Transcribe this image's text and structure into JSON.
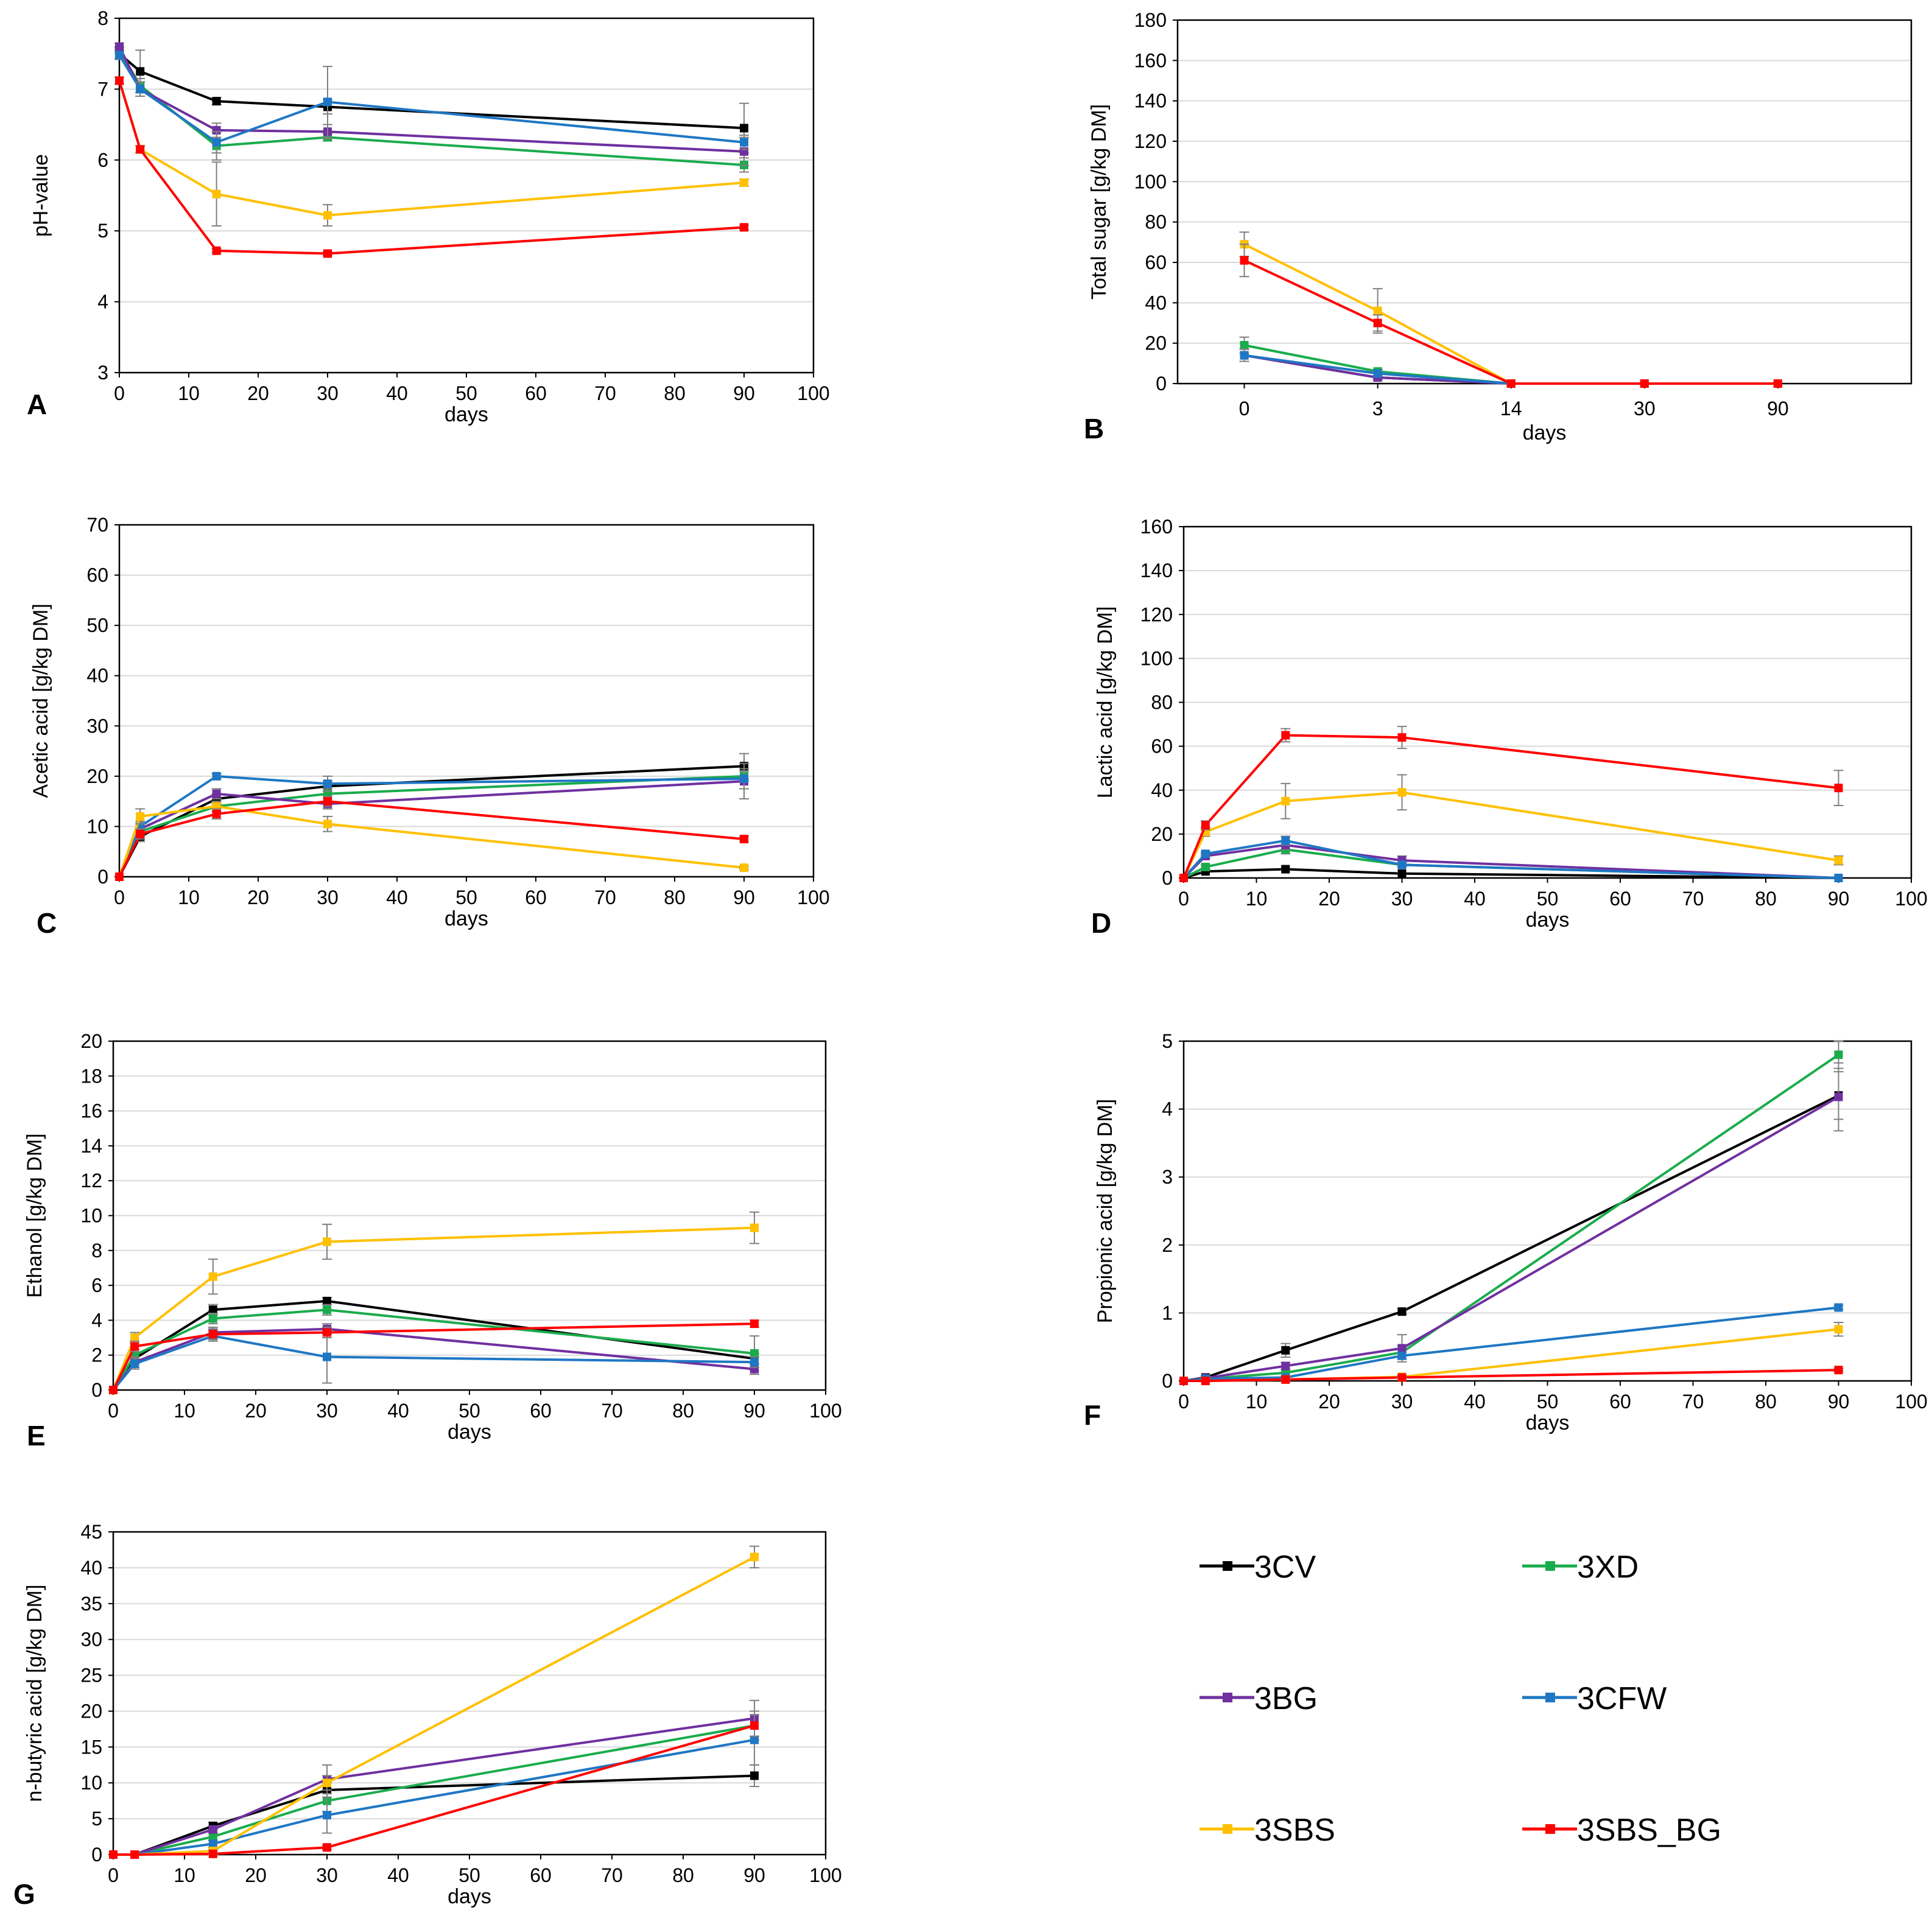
{
  "series_styles": [
    {
      "name": "3CV",
      "color": "#000000"
    },
    {
      "name": "3XD",
      "color": "#1aac4c"
    },
    {
      "name": "3BG",
      "color": "#7030a0"
    },
    {
      "name": "3CFW",
      "color": "#1f77c4"
    },
    {
      "name": "3SBS",
      "color": "#ffc000"
    },
    {
      "name": "3SBS_BG",
      "color": "#ff0000"
    }
  ],
  "chart_data": [
    {
      "panel": "A",
      "type": "line",
      "title": "",
      "xlabel": "days",
      "ylabel": "pH-value",
      "xlim": [
        0,
        100
      ],
      "ylim": [
        3,
        8
      ],
      "xticks": [
        0,
        10,
        20,
        30,
        40,
        50,
        60,
        70,
        80,
        90,
        100
      ],
      "yticks": [
        3,
        4,
        5,
        6,
        7,
        8
      ],
      "grid": true,
      "x": [
        0,
        3,
        14,
        30,
        90
      ],
      "series": [
        {
          "name": "3CV",
          "values": [
            7.5,
            7.25,
            6.83,
            6.75,
            6.45
          ],
          "errors": [
            0.08,
            0.3,
            0.05,
            0.1,
            0.35
          ]
        },
        {
          "name": "3XD",
          "values": [
            7.55,
            7.05,
            6.2,
            6.32,
            5.93
          ],
          "errors": [
            0.05,
            0.1,
            0.2,
            0.05,
            0.1
          ]
        },
        {
          "name": "3BG",
          "values": [
            7.6,
            7.0,
            6.42,
            6.4,
            6.12
          ],
          "errors": [
            0.05,
            0.1,
            0.1,
            0.1,
            0.2
          ]
        },
        {
          "name": "3CFW",
          "values": [
            7.48,
            7.0,
            6.25,
            6.82,
            6.25
          ],
          "errors": [
            0.05,
            0.1,
            0.15,
            0.5,
            0.1
          ]
        },
        {
          "name": "3SBS",
          "values": [
            7.12,
            6.15,
            5.52,
            5.22,
            5.68
          ],
          "errors": [
            0.05,
            0.05,
            0.45,
            0.15,
            0.05
          ]
        },
        {
          "name": "3SBS_BG",
          "values": [
            7.12,
            6.15,
            4.72,
            4.68,
            5.05
          ],
          "errors": [
            0.05,
            0.05,
            0.03,
            0.03,
            0.03
          ]
        }
      ]
    },
    {
      "panel": "B",
      "type": "line",
      "title": "",
      "xlabel": "days",
      "ylabel": "Total sugar  [g/kg DM]",
      "x_categorical": true,
      "categories": [
        "0",
        "3",
        "14",
        "30",
        "90"
      ],
      "ylim": [
        0,
        180
      ],
      "yticks": [
        0,
        20,
        40,
        60,
        80,
        100,
        120,
        140,
        160,
        180
      ],
      "grid": true,
      "series": [
        {
          "name": "3CV",
          "values": [
            14,
            3,
            0,
            0,
            0
          ],
          "errors": [
            3,
            1,
            0,
            0,
            0
          ]
        },
        {
          "name": "3XD",
          "values": [
            19,
            6,
            0,
            0,
            0
          ],
          "errors": [
            4,
            1,
            0,
            0,
            0
          ]
        },
        {
          "name": "3BG",
          "values": [
            14,
            3,
            0,
            0,
            0
          ],
          "errors": [
            3,
            1,
            0,
            0,
            0
          ]
        },
        {
          "name": "3CFW",
          "values": [
            14,
            5,
            0,
            0,
            0
          ],
          "errors": [
            3,
            1,
            0,
            0,
            0
          ]
        },
        {
          "name": "3SBS",
          "values": [
            69,
            36,
            0,
            0,
            0
          ],
          "errors": [
            6,
            11,
            0,
            0,
            0
          ]
        },
        {
          "name": "3SBS_BG",
          "values": [
            61,
            30,
            0,
            0,
            0
          ],
          "errors": [
            8,
            4,
            0,
            0,
            0
          ]
        }
      ]
    },
    {
      "panel": "C",
      "type": "line",
      "title": "",
      "xlabel": "days",
      "ylabel": "Acetic acid [g/kg DM]",
      "xlim": [
        0,
        100
      ],
      "ylim": [
        0,
        70
      ],
      "xticks": [
        0,
        10,
        20,
        30,
        40,
        50,
        60,
        70,
        80,
        90,
        100
      ],
      "yticks": [
        0,
        10,
        20,
        30,
        40,
        50,
        60,
        70
      ],
      "grid": true,
      "x": [
        0,
        3,
        14,
        30,
        90
      ],
      "series": [
        {
          "name": "3CV",
          "values": [
            0,
            8,
            15.5,
            18,
            22
          ],
          "errors": [
            0,
            1,
            1,
            1,
            2.5
          ]
        },
        {
          "name": "3XD",
          "values": [
            0,
            9,
            14,
            16.5,
            20
          ],
          "errors": [
            0,
            1,
            1,
            1,
            1
          ]
        },
        {
          "name": "3BG",
          "values": [
            0,
            9.5,
            16.5,
            14.5,
            19
          ],
          "errors": [
            0,
            1,
            1,
            1,
            3.5
          ]
        },
        {
          "name": "3CFW",
          "values": [
            0,
            10,
            20,
            18.5,
            19.5
          ],
          "errors": [
            0,
            1,
            0.5,
            1.5,
            2
          ]
        },
        {
          "name": "3SBS",
          "values": [
            0,
            12,
            14,
            10.5,
            1.8
          ],
          "errors": [
            0,
            1.5,
            1,
            1.5,
            0.3
          ]
        },
        {
          "name": "3SBS_BG",
          "values": [
            0,
            8.5,
            12.5,
            15,
            7.5
          ],
          "errors": [
            0,
            1,
            1,
            1,
            0.5
          ]
        }
      ]
    },
    {
      "panel": "D",
      "type": "line",
      "title": "",
      "xlabel": "days",
      "ylabel": "Lactic acid [g/kg DM]",
      "xlim": [
        0,
        100
      ],
      "ylim": [
        0,
        160
      ],
      "xticks": [
        0,
        10,
        20,
        30,
        40,
        50,
        60,
        70,
        80,
        90,
        100
      ],
      "yticks": [
        0,
        20,
        40,
        60,
        80,
        100,
        120,
        140,
        160
      ],
      "grid": true,
      "x": [
        0,
        3,
        14,
        30,
        90
      ],
      "series": [
        {
          "name": "3CV",
          "values": [
            0,
            3,
            4,
            2,
            0
          ],
          "errors": [
            0,
            0.5,
            0.5,
            0.5,
            0
          ]
        },
        {
          "name": "3XD",
          "values": [
            0,
            5,
            13,
            6,
            0
          ],
          "errors": [
            0,
            1,
            2,
            1,
            0
          ]
        },
        {
          "name": "3BG",
          "values": [
            0,
            10,
            15,
            8,
            0
          ],
          "errors": [
            0,
            1,
            2,
            2,
            0
          ]
        },
        {
          "name": "3CFW",
          "values": [
            0,
            11,
            17,
            6,
            0
          ],
          "errors": [
            0,
            1,
            2,
            1,
            0
          ]
        },
        {
          "name": "3SBS",
          "values": [
            0,
            21,
            35,
            39,
            8
          ],
          "errors": [
            0,
            2,
            8,
            8,
            2
          ]
        },
        {
          "name": "3SBS_BG",
          "values": [
            0,
            24,
            65,
            64,
            41
          ],
          "errors": [
            0,
            2,
            3,
            5,
            8
          ]
        }
      ]
    },
    {
      "panel": "E",
      "type": "line",
      "title": "",
      "xlabel": "days",
      "ylabel": "Ethanol [g/kg DM]",
      "xlim": [
        0,
        100
      ],
      "ylim": [
        0,
        20
      ],
      "xticks": [
        0,
        10,
        20,
        30,
        40,
        50,
        60,
        70,
        80,
        90,
        100
      ],
      "yticks": [
        0,
        2,
        4,
        6,
        8,
        10,
        12,
        14,
        16,
        18,
        20
      ],
      "grid": true,
      "x": [
        0,
        3,
        14,
        30,
        90
      ],
      "series": [
        {
          "name": "3CV",
          "values": [
            0,
            1.8,
            4.6,
            5.1,
            1.8
          ],
          "errors": [
            0,
            0.3,
            0.3,
            0.2,
            0.3
          ]
        },
        {
          "name": "3XD",
          "values": [
            0,
            2.0,
            4.1,
            4.6,
            2.1
          ],
          "errors": [
            0,
            0.3,
            0.3,
            0.3,
            1.0
          ]
        },
        {
          "name": "3BG",
          "values": [
            0,
            1.6,
            3.3,
            3.5,
            1.2
          ],
          "errors": [
            0,
            0.3,
            0.3,
            0.3,
            0.3
          ]
        },
        {
          "name": "3CFW",
          "values": [
            0,
            1.5,
            3.1,
            1.9,
            1.6
          ],
          "errors": [
            0,
            0.3,
            0.3,
            1.5,
            0.3
          ]
        },
        {
          "name": "3SBS",
          "values": [
            0,
            3.0,
            6.5,
            8.5,
            9.3
          ],
          "errors": [
            0,
            0.3,
            1.0,
            1.0,
            0.9
          ]
        },
        {
          "name": "3SBS_BG",
          "values": [
            0,
            2.5,
            3.2,
            3.3,
            3.8
          ],
          "errors": [
            0,
            0.3,
            0.3,
            0.3,
            0.2
          ]
        }
      ]
    },
    {
      "panel": "F",
      "type": "line",
      "title": "",
      "xlabel": "days",
      "ylabel": "Propionic acid [g/kg DM]",
      "xlim": [
        0,
        100
      ],
      "ylim": [
        0,
        5
      ],
      "xticks": [
        0,
        10,
        20,
        30,
        40,
        50,
        60,
        70,
        80,
        90,
        100
      ],
      "yticks": [
        0,
        1,
        2,
        3,
        4,
        5
      ],
      "grid": true,
      "x": [
        0,
        3,
        14,
        30,
        90
      ],
      "series": [
        {
          "name": "3CV",
          "values": [
            0,
            0.05,
            0.45,
            1.02,
            4.2
          ],
          "errors": [
            0,
            0.02,
            0.1,
            0.04,
            0.35
          ]
        },
        {
          "name": "3XD",
          "values": [
            0,
            0.03,
            0.12,
            0.42,
            4.8
          ],
          "errors": [
            0,
            0.02,
            0.05,
            0.1,
            0.2
          ]
        },
        {
          "name": "3BG",
          "values": [
            0,
            0.04,
            0.22,
            0.48,
            4.18
          ],
          "errors": [
            0,
            0.02,
            0.05,
            0.2,
            0.5
          ]
        },
        {
          "name": "3CFW",
          "values": [
            0,
            0.03,
            0.05,
            0.37,
            1.08
          ],
          "errors": [
            0,
            0.01,
            0.02,
            0.05,
            0.03
          ]
        },
        {
          "name": "3SBS",
          "values": [
            0,
            0,
            0.02,
            0.06,
            0.76
          ],
          "errors": [
            0,
            0,
            0.01,
            0.02,
            0.1
          ]
        },
        {
          "name": "3SBS_BG",
          "values": [
            0,
            0,
            0.02,
            0.05,
            0.16
          ],
          "errors": [
            0,
            0,
            0.01,
            0.01,
            0.02
          ]
        }
      ]
    },
    {
      "panel": "G",
      "type": "line",
      "title": "",
      "xlabel": "days",
      "ylabel": "n-butyric acid [g/kg DM]",
      "xlim": [
        0,
        100
      ],
      "ylim": [
        0,
        45
      ],
      "xticks": [
        0,
        10,
        20,
        30,
        40,
        50,
        60,
        70,
        80,
        90,
        100
      ],
      "yticks": [
        0,
        5,
        10,
        15,
        20,
        25,
        30,
        35,
        40,
        45
      ],
      "grid": true,
      "x": [
        0,
        3,
        14,
        30,
        90
      ],
      "series": [
        {
          "name": "3CV",
          "values": [
            0,
            0,
            4,
            9,
            11
          ],
          "errors": [
            0,
            0,
            0.5,
            1,
            1.5
          ]
        },
        {
          "name": "3XD",
          "values": [
            0,
            0,
            2.5,
            7.5,
            18
          ],
          "errors": [
            0,
            0,
            0.5,
            1.5,
            2
          ]
        },
        {
          "name": "3BG",
          "values": [
            0,
            0,
            3.5,
            10.5,
            19
          ],
          "errors": [
            0,
            0,
            0.5,
            2,
            2.5
          ]
        },
        {
          "name": "3CFW",
          "values": [
            0,
            0,
            1.5,
            5.5,
            16
          ],
          "errors": [
            0,
            0,
            0.5,
            2.5,
            3.5
          ]
        },
        {
          "name": "3SBS",
          "values": [
            0,
            0,
            0.5,
            10,
            41.5
          ],
          "errors": [
            0,
            0,
            0.2,
            1,
            1.5
          ]
        },
        {
          "name": "3SBS_BG",
          "values": [
            0,
            0,
            0.1,
            1,
            18
          ],
          "errors": [
            0,
            0,
            0.1,
            0.3,
            1.5
          ]
        }
      ]
    }
  ]
}
